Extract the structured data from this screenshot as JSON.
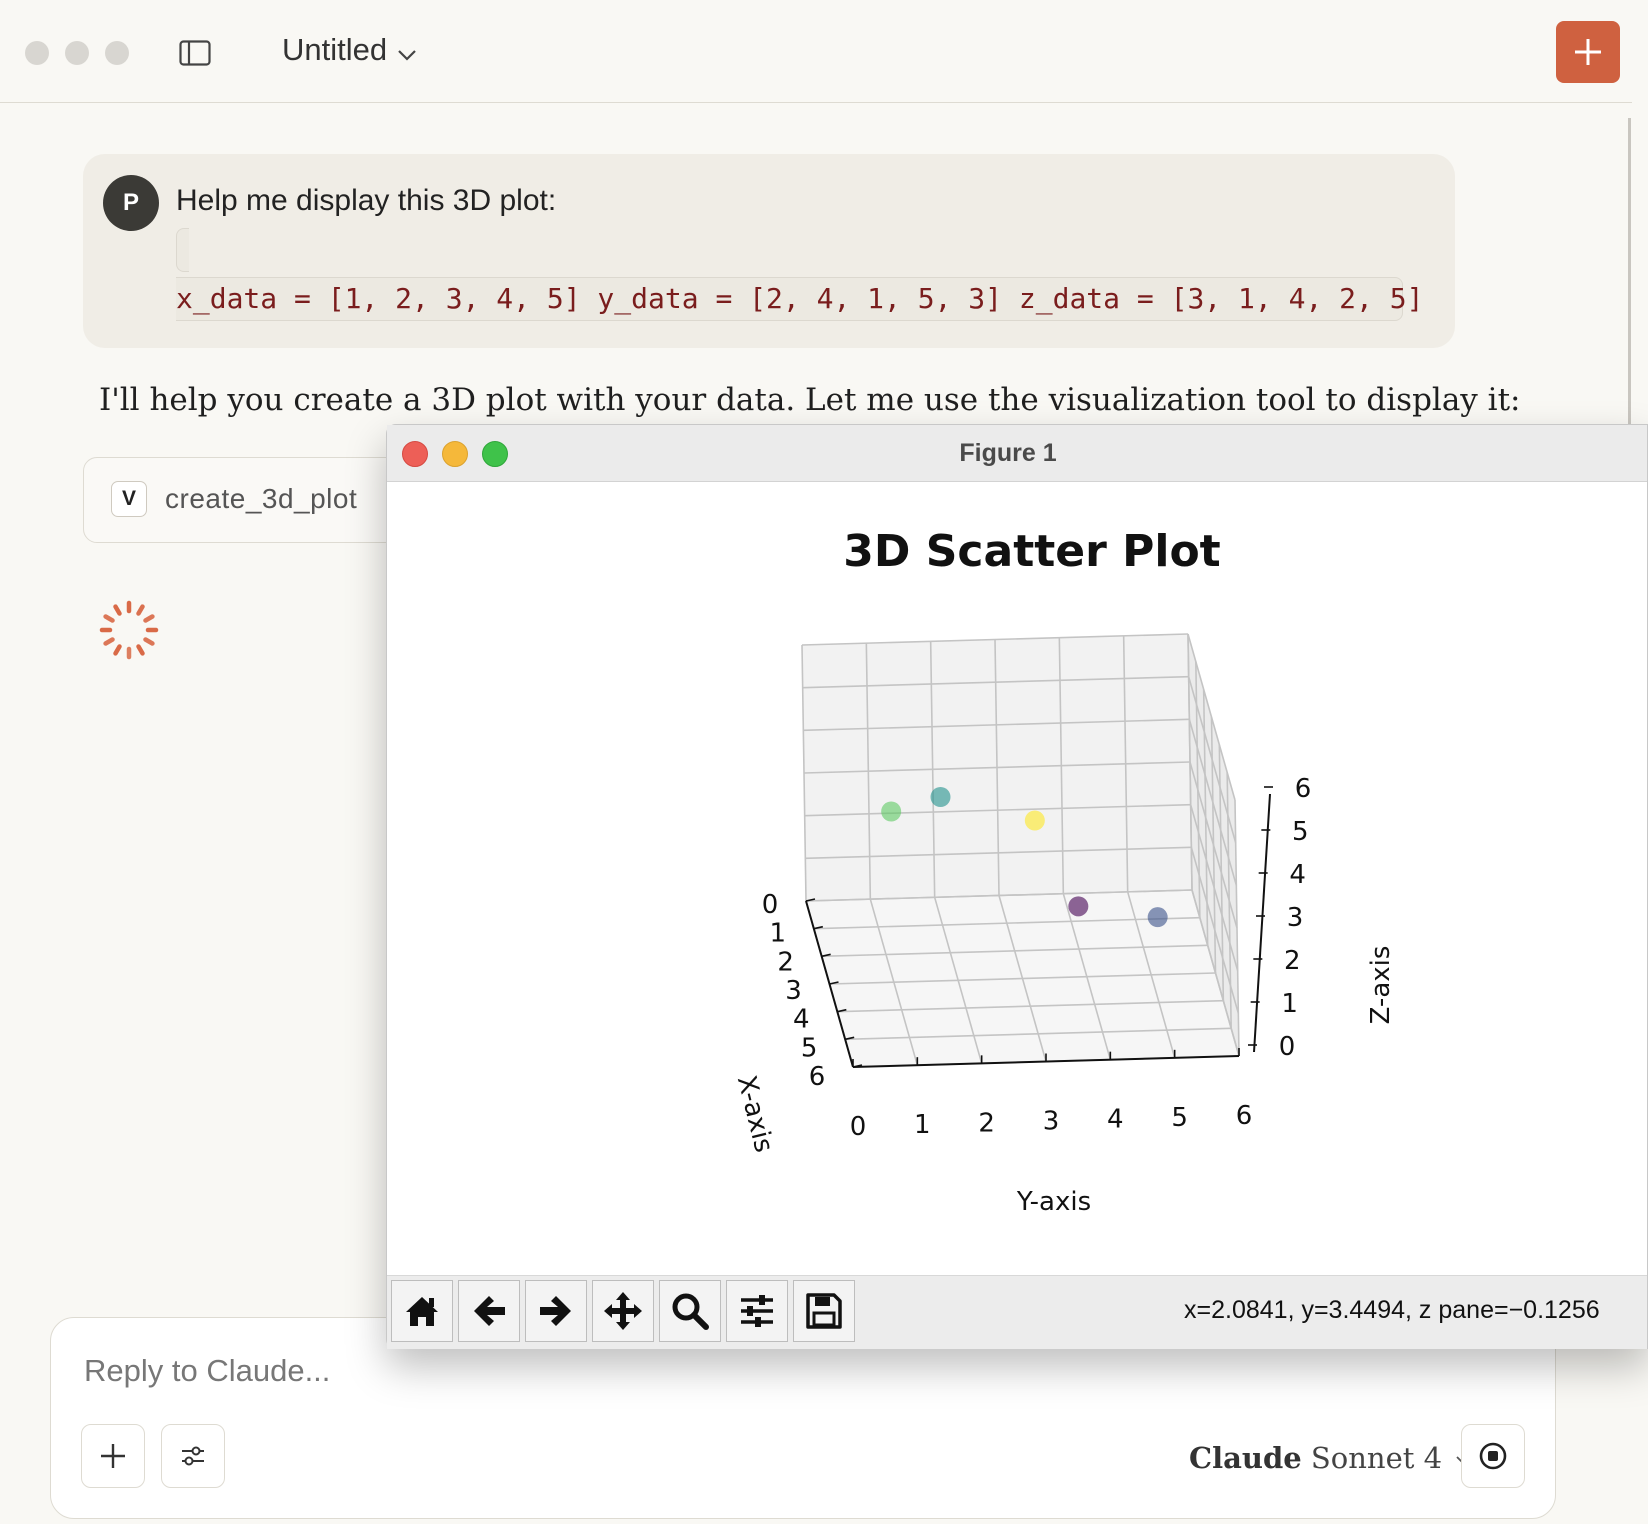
{
  "window": {
    "title": "Untitled"
  },
  "conversation": {
    "user": {
      "avatar_initial": "P",
      "message": "Help me display this 3D plot:",
      "code": "x_data = [1, 2, 3, 4, 5] y_data = [2, 4, 1, 5, 3] z_data = [3, 1, 4, 2, 5]"
    },
    "assistant": {
      "message": "I'll help you create a 3D plot with your data. Let me use the visualization tool to display it:",
      "tool_badge": "V",
      "tool_name": "create_3d_plot"
    }
  },
  "composer": {
    "placeholder": "Reply to Claude...",
    "model_brand": "Claude",
    "model_name": "Sonnet 4"
  },
  "figure_window": {
    "title": "Figure 1",
    "status": "x=2.0841, y=3.4494, z pane=−0.1256",
    "toolbar": [
      "home-icon",
      "back-icon",
      "forward-icon",
      "pan-icon",
      "zoom-icon",
      "configure-icon",
      "save-icon"
    ]
  },
  "chart_data": {
    "type": "scatter",
    "title": "3D Scatter Plot",
    "xlabel": "X-axis",
    "ylabel": "Y-axis",
    "zlabel": "Z-axis",
    "x": [
      1,
      2,
      3,
      4,
      5
    ],
    "y": [
      2,
      4,
      1,
      5,
      3
    ],
    "z": [
      3,
      1,
      4,
      2,
      5
    ],
    "xlim": [
      0,
      6
    ],
    "ylim": [
      0,
      6
    ],
    "zlim": [
      0,
      6
    ],
    "xticks": [
      "0",
      "1",
      "2",
      "3",
      "4",
      "5",
      "6"
    ],
    "yticks": [
      "0",
      "1",
      "2",
      "3",
      "4",
      "5",
      "6"
    ],
    "zticks": [
      "0",
      "1",
      "2",
      "3",
      "4",
      "5",
      "6"
    ],
    "colormap": "viridis",
    "grid": true
  }
}
